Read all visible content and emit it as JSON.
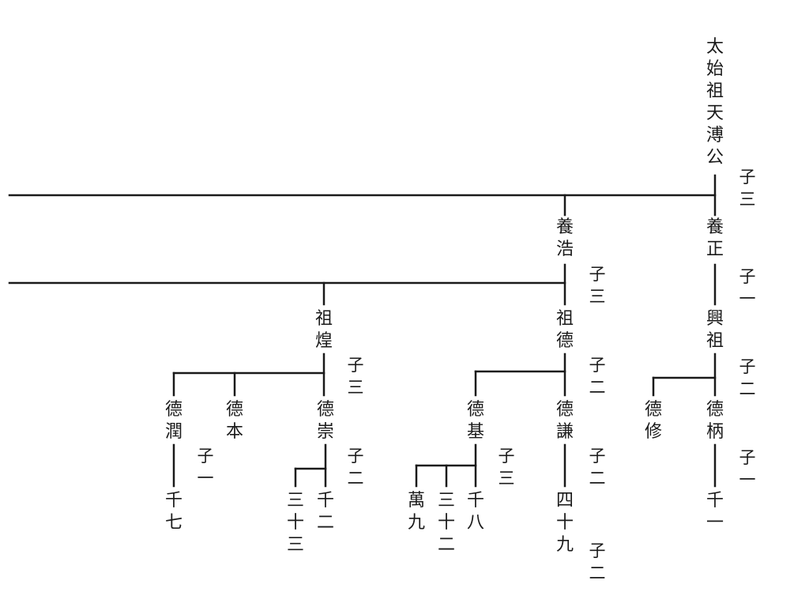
{
  "tree": {
    "root": "太始祖天溥公",
    "root_children_count": "子三",
    "yang_zheng": "養正",
    "yang_zheng_count": "子一",
    "xing_zu": "興祖",
    "xing_zu_count": "子二",
    "de_bing": "德柄",
    "de_bing_count": "子一",
    "de_xiu": "德修",
    "qian_yi": "千一",
    "yang_hao": "養浩",
    "yang_hao_count": "子三",
    "zu_de": "祖德",
    "zu_de_count": "子二",
    "de_qian": "德謙",
    "de_qian_count": "子二",
    "si_shi_jiu": "四十九",
    "si_shi_jiu_count": "子二",
    "de_ji": "德基",
    "de_ji_count": "子三",
    "qian_ba": "千八",
    "san_shi_er": "三十二",
    "wan_jiu": "萬九",
    "zu_huang": "祖煌",
    "zu_huang_count": "子三",
    "de_chong": "德崇",
    "de_chong_count": "子二",
    "qian_er": "千二",
    "san_shi_san": "三十三",
    "de_ben": "德本",
    "de_run": "德潤",
    "de_run_count": "子一",
    "qian_qi": "千七"
  },
  "colors": {
    "line": "#1a1a1a",
    "text": "#1a1a1a",
    "background": "#ffffff"
  }
}
